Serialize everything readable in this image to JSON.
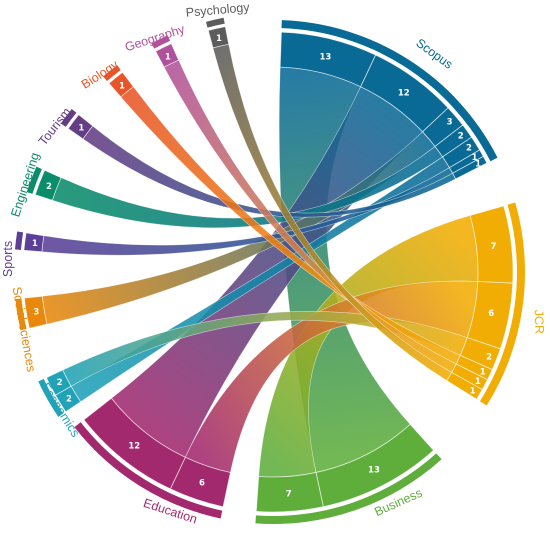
{
  "chart_data": {
    "type": "chord",
    "title": "",
    "nodes": [
      {
        "name": "Scopus",
        "color": "#0a6a96"
      },
      {
        "name": "JCR",
        "color": "#f2ad04"
      },
      {
        "name": "Business",
        "color": "#5fae3c"
      },
      {
        "name": "Education",
        "color": "#a3296f"
      },
      {
        "name": "Economics",
        "color": "#20a2b7"
      },
      {
        "name": "Social sciences",
        "color": "#e8880c"
      },
      {
        "name": "Sports",
        "color": "#5c3f96"
      },
      {
        "name": "Engineering",
        "color": "#0b8c6a"
      },
      {
        "name": "Tourism",
        "color": "#653d84"
      },
      {
        "name": "Biology",
        "color": "#e85528"
      },
      {
        "name": "Geography",
        "color": "#b0529b"
      },
      {
        "name": "Psychology",
        "color": "#5c5c5c"
      }
    ],
    "links": [
      {
        "source": "Scopus",
        "target": "Business",
        "value": 13
      },
      {
        "source": "Scopus",
        "target": "Education",
        "value": 12
      },
      {
        "source": "Scopus",
        "target": "Social sciences",
        "value": 3
      },
      {
        "source": "Scopus",
        "target": "Engineering",
        "value": 2
      },
      {
        "source": "Scopus",
        "target": "Economics",
        "value": 2
      },
      {
        "source": "Scopus",
        "target": "Sports",
        "value": 1
      },
      {
        "source": "Scopus",
        "target": "Tourism",
        "value": 1
      },
      {
        "source": "JCR",
        "target": "Business",
        "value": 7
      },
      {
        "source": "JCR",
        "target": "Education",
        "value": 6
      },
      {
        "source": "JCR",
        "target": "Economics",
        "value": 2
      },
      {
        "source": "JCR",
        "target": "Biology",
        "value": 1
      },
      {
        "source": "JCR",
        "target": "Geography",
        "value": 1
      },
      {
        "source": "JCR",
        "target": "Psychology",
        "value": 1
      }
    ]
  }
}
